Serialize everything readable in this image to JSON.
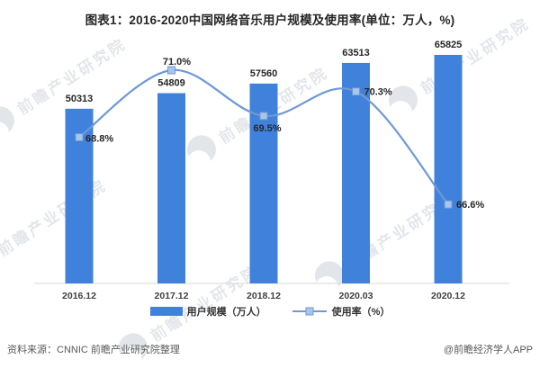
{
  "title": "图表1：2016-2020中国网络音乐用户规模及使用率(单位：万人，%)",
  "watermark": {
    "text": "前瞻产业研究院"
  },
  "legend": {
    "bar_label": "用户规模（万人）",
    "line_label": "使用率（%）"
  },
  "footer": {
    "source": "资料来源：CNNIC 前瞻产业研究院整理",
    "credit": "@前瞻经济学人APP"
  },
  "colors": {
    "bar": "#4081DC",
    "line": "#6E99D5",
    "marker_fill": "#A9C6E9",
    "marker_stroke": "#6E99D5",
    "axis": "#D9D9D9",
    "data_label": "#262626",
    "x_label": "#404040"
  },
  "chart_data": {
    "type": "bar+line combo",
    "title": "图表1：2016-2020中国网络音乐用户规模及使用率(单位：万人，%)",
    "unit": "万人，%",
    "categories": [
      "2016.12",
      "2017.12",
      "2018.12",
      "2020.03",
      "2020.12"
    ],
    "series": [
      {
        "name": "用户规模（万人）",
        "type": "bar",
        "values": [
          50313,
          54809,
          57560,
          63513,
          65825
        ]
      },
      {
        "name": "使用率（%）",
        "type": "line",
        "values": [
          68.8,
          71.0,
          69.5,
          70.3,
          66.6
        ]
      }
    ],
    "legend_position": "bottom",
    "grid": false,
    "y_axis_visible": false,
    "data_labels_visible": true
  }
}
